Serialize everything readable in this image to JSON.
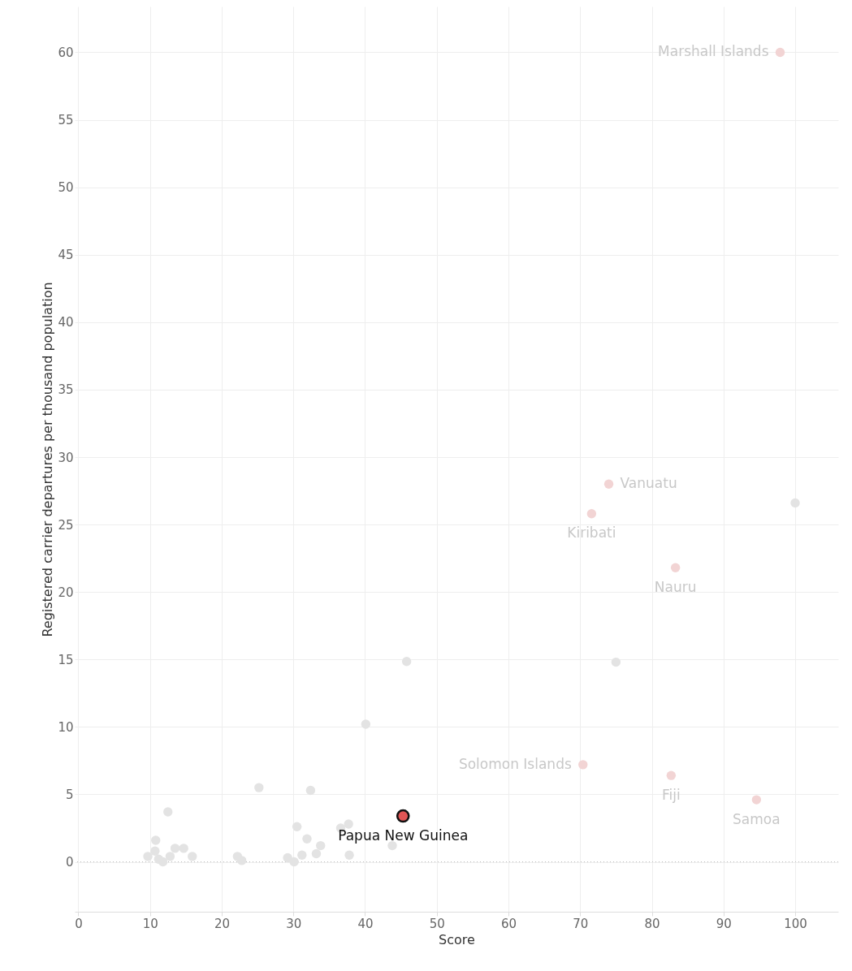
{
  "chart_data": {
    "type": "scatter",
    "xlabel": "Score",
    "ylabel": "Registered carrier departures per thousand population",
    "xlim": [
      -0.5,
      106
    ],
    "ylim": [
      -3.7,
      63.4
    ],
    "xticks": [
      0,
      10,
      20,
      30,
      40,
      50,
      60,
      70,
      80,
      90,
      100
    ],
    "yticks": [
      0,
      5,
      10,
      15,
      20,
      25,
      30,
      35,
      40,
      45,
      50,
      55,
      60
    ],
    "grid": true,
    "marker": "circle",
    "ref_lines": [
      {
        "axis": "y",
        "value": 0,
        "line_style": "dotted",
        "color": "#bbbbbb"
      }
    ],
    "series": [
      {
        "color": "#e3e3e3",
        "x": [
          100,
          75.0,
          45.8,
          40.1,
          25.2,
          32.4,
          12.5,
          10.8,
          9.7,
          10.7,
          11.2,
          11.8,
          12.8,
          13.5,
          14.7,
          15.9,
          22.2,
          22.8,
          30.5,
          29.2,
          30.1,
          31.2,
          31.9,
          33.2,
          33.8,
          36.6,
          37.7,
          37.8,
          43.8
        ],
        "values": [
          26.6,
          14.8,
          14.85,
          10.2,
          5.5,
          5.3,
          3.7,
          1.6,
          0.4,
          0.8,
          0.2,
          0.0,
          0.4,
          1.0,
          1.0,
          0.4,
          0.4,
          0.1,
          2.6,
          0.3,
          0.0,
          0.5,
          1.7,
          0.6,
          1.2,
          2.5,
          2.8,
          0.5,
          1.2
        ]
      },
      {
        "color": "#f2d4d4",
        "x": [
          97.9,
          74.0,
          71.6,
          83.3,
          70.4,
          82.7,
          94.6
        ],
        "values": [
          60.0,
          28.0,
          25.8,
          21.8,
          7.2,
          6.4,
          4.6
        ]
      },
      {
        "color": "#e05555",
        "x": [
          45.3
        ],
        "values": [
          3.4
        ]
      }
    ],
    "annotations": [
      {
        "text": "Marshall Islands",
        "x": 97.9,
        "y": 60.0
      },
      {
        "text": "Vanuatu",
        "x": 74.0,
        "y": 28.0
      },
      {
        "text": "Kiribati",
        "x": 71.6,
        "y": 25.8
      },
      {
        "text": "Nauru",
        "x": 83.3,
        "y": 21.8
      },
      {
        "text": "Solomon Islands",
        "x": 70.4,
        "y": 7.2
      },
      {
        "text": "Fiji",
        "x": 82.7,
        "y": 6.4
      },
      {
        "text": "Samoa",
        "x": 94.6,
        "y": 4.6
      },
      {
        "text": "Papua New Guinea",
        "x": 45.3,
        "y": 3.4
      }
    ]
  }
}
